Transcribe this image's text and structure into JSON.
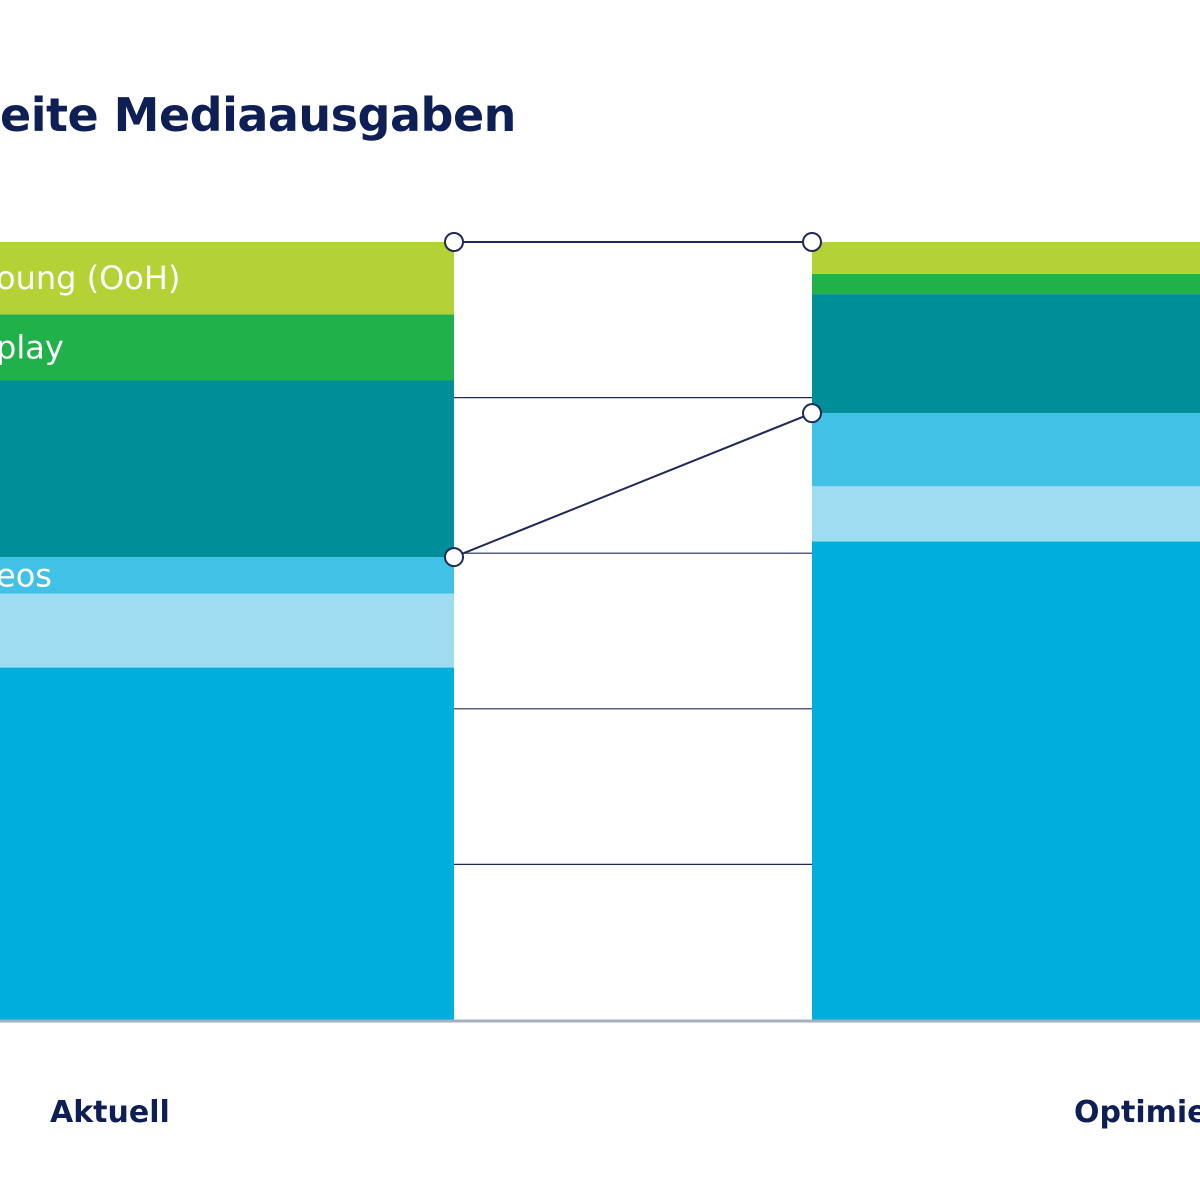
{
  "title": "eite Mediaausgaben",
  "chart_data": {
    "type": "bar",
    "stacked": true,
    "title": "eite Mediaausgaben",
    "categories": [
      "Aktuell",
      "Optimie"
    ],
    "ylim": [
      0,
      100
    ],
    "colors": {
      "ooh": "#b2d235",
      "display": "#21b14b",
      "teal": "#008e99",
      "online_videos": "#41c1e5",
      "light_blue": "#9edcf2",
      "blue": "#00aedb",
      "connector": "#1e2b5a"
    },
    "series": [
      {
        "key": "blue",
        "label": "",
        "values": [
          45.3,
          61.5
        ]
      },
      {
        "key": "light_blue",
        "label": "",
        "values": [
          9.5,
          7.1
        ]
      },
      {
        "key": "online_videos",
        "label": "eos",
        "values": [
          4.7,
          9.4
        ]
      },
      {
        "key": "teal",
        "label": "",
        "values": [
          22.7,
          15.3
        ]
      },
      {
        "key": "display",
        "label": "play",
        "values": [
          8.5,
          2.6
        ]
      },
      {
        "key": "ooh",
        "label": "oung (OoH)",
        "values": [
          9.3,
          4.1
        ]
      }
    ],
    "gridlines": [
      20,
      40,
      60,
      80,
      100
    ],
    "connector_levels": [
      100,
      59.5,
      78.0
    ]
  }
}
